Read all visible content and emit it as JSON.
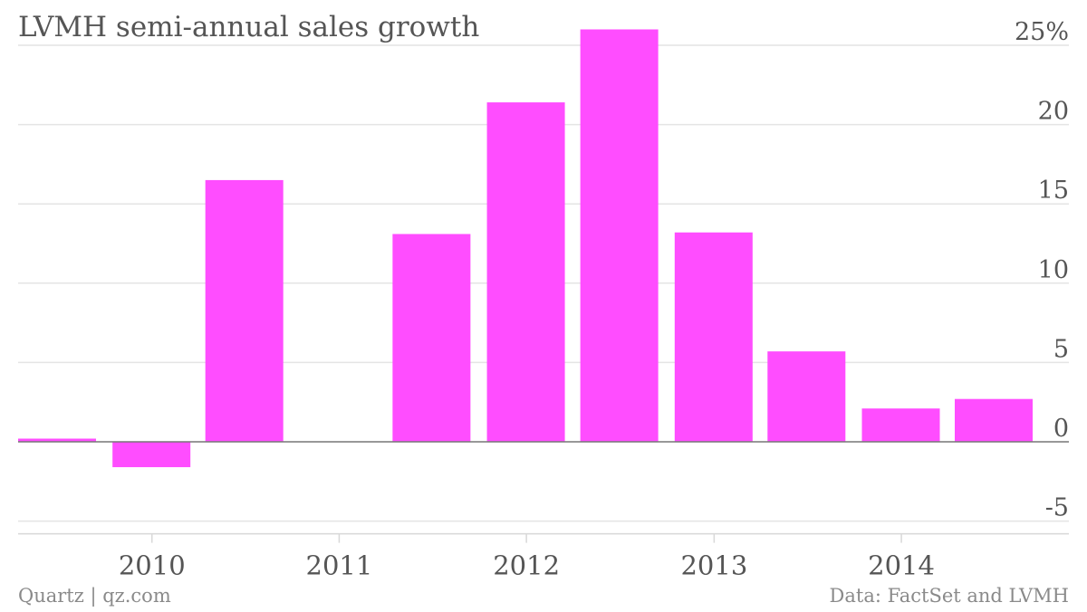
{
  "chart_data": {
    "type": "bar",
    "title": "LVMH semi-annual sales growth",
    "credit": "Quartz | qz.com",
    "source": "Data: FactSet and LVMH",
    "x": [
      "2009-06-30",
      "2009-12-31",
      "2010-06-30",
      "2010-12-31",
      "2011-06-30",
      "2011-12-31",
      "2012-06-30",
      "2012-12-31",
      "2013-06-30",
      "2013-12-31",
      "2014-06-30"
    ],
    "values": [
      0.2,
      -1.6,
      16.5,
      0,
      13.1,
      21.4,
      26.0,
      13.2,
      5.7,
      2.1,
      2.7
    ],
    "xticks": [
      "2010",
      "2011",
      "2012",
      "2013",
      "2014"
    ],
    "yticks": [
      "25%",
      "20",
      "15",
      "10",
      "5",
      "0",
      "-5"
    ],
    "ylim": [
      -5,
      25
    ],
    "grid": true,
    "y_axis_side": "right",
    "bar_color": "#ff4dff"
  }
}
